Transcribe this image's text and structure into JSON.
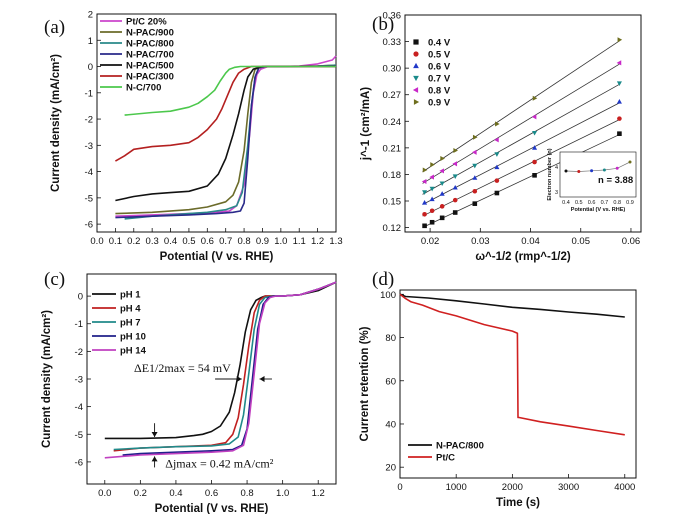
{
  "chart_data": [
    {
      "panel": "(a)",
      "type": "line",
      "xlabel": "Potential (V vs. RHE)",
      "ylabel": "Current density (mA/cm²)",
      "xlim": [
        0.0,
        1.3
      ],
      "ylim": [
        -6.3,
        2.0
      ],
      "xticks": [
        "0.0",
        "0.1",
        "0.2",
        "0.3",
        "0.4",
        "0.5",
        "0.6",
        "0.7",
        "0.8",
        "0.9",
        "1.0",
        "1.1",
        "1.2",
        "1.3"
      ],
      "yticks": [
        "2",
        "1",
        "0",
        "-1",
        "-2",
        "-3",
        "-4",
        "-5",
        "-6"
      ],
      "legend_position": "top-left",
      "series": [
        {
          "name": "Pt/C 20%",
          "color": "#cc44cc",
          "x": [
            0.1,
            0.3,
            0.5,
            0.65,
            0.72,
            0.76,
            0.8,
            0.83,
            0.85,
            0.87,
            0.89,
            0.93,
            1.0,
            1.1,
            1.2,
            1.28,
            1.3
          ],
          "y": [
            -5.7,
            -5.65,
            -5.6,
            -5.55,
            -5.5,
            -5.3,
            -4.5,
            -2.6,
            -1.0,
            -0.3,
            -0.1,
            0.0,
            0.0,
            0.02,
            0.1,
            0.25,
            0.4
          ]
        },
        {
          "name": "N-PAC/900",
          "color": "#6b6b2a",
          "x": [
            0.1,
            0.3,
            0.5,
            0.6,
            0.7,
            0.74,
            0.77,
            0.8,
            0.82,
            0.84,
            0.86,
            0.9,
            1.0,
            1.2,
            1.3
          ],
          "y": [
            -5.6,
            -5.55,
            -5.45,
            -5.35,
            -5.15,
            -4.9,
            -4.4,
            -3.2,
            -1.8,
            -0.6,
            -0.1,
            0.0,
            0.0,
            0.02,
            0.05
          ]
        },
        {
          "name": "N-PAC/800",
          "color": "#2a8a8a",
          "x": [
            0.15,
            0.3,
            0.5,
            0.6,
            0.7,
            0.76,
            0.79,
            0.82,
            0.84,
            0.86,
            0.88,
            0.92,
            1.0,
            1.2,
            1.3
          ],
          "y": [
            -5.8,
            -5.7,
            -5.6,
            -5.55,
            -5.45,
            -5.3,
            -4.8,
            -3.0,
            -1.5,
            -0.4,
            -0.05,
            0.0,
            0.0,
            0.02,
            0.05
          ]
        },
        {
          "name": "N-PAC/700",
          "color": "#2a2a8a",
          "x": [
            0.1,
            0.3,
            0.5,
            0.65,
            0.74,
            0.78,
            0.8,
            0.82,
            0.84,
            0.86,
            0.88,
            0.92,
            1.0,
            1.3
          ],
          "y": [
            -5.75,
            -5.7,
            -5.65,
            -5.6,
            -5.55,
            -5.5,
            -5.2,
            -3.5,
            -1.5,
            -0.4,
            -0.05,
            0.0,
            0.0,
            0.02
          ]
        },
        {
          "name": "N-PAC/500",
          "color": "#111111",
          "x": [
            0.1,
            0.2,
            0.3,
            0.4,
            0.5,
            0.6,
            0.66,
            0.7,
            0.74,
            0.77,
            0.8,
            0.82,
            0.85,
            0.9,
            1.0,
            1.3
          ],
          "y": [
            -5.1,
            -4.95,
            -4.85,
            -4.8,
            -4.75,
            -4.55,
            -4.1,
            -3.5,
            -2.6,
            -1.8,
            -0.9,
            -0.4,
            -0.1,
            0.0,
            0.0,
            0.0
          ]
        },
        {
          "name": "N-PAC/300",
          "color": "#b42020",
          "x": [
            0.1,
            0.15,
            0.2,
            0.3,
            0.4,
            0.5,
            0.55,
            0.6,
            0.65,
            0.68,
            0.71,
            0.74,
            0.77,
            0.8,
            0.84,
            0.9,
            1.0,
            1.3
          ],
          "y": [
            -3.6,
            -3.4,
            -3.15,
            -3.05,
            -3.0,
            -2.9,
            -2.7,
            -2.4,
            -2.0,
            -1.6,
            -1.1,
            -0.6,
            -0.25,
            -0.1,
            0.0,
            0.0,
            0.0,
            0.0
          ]
        },
        {
          "name": "N-C/700",
          "color": "#4cc84c",
          "x": [
            0.15,
            0.3,
            0.4,
            0.5,
            0.55,
            0.6,
            0.64,
            0.67,
            0.7,
            0.72,
            0.75,
            0.78,
            0.82,
            0.9,
            1.0,
            1.3
          ],
          "y": [
            -1.85,
            -1.75,
            -1.7,
            -1.55,
            -1.4,
            -1.15,
            -0.9,
            -0.55,
            -0.25,
            -0.1,
            -0.03,
            0.0,
            0.0,
            0.0,
            0.0,
            0.0
          ]
        }
      ]
    },
    {
      "panel": "(b)",
      "type": "scatter",
      "xlabel": "ω^-1/2 (rmp^-1/2)",
      "ylabel": "j^-1 (cm²/mA)",
      "xlim": [
        0.015,
        0.062
      ],
      "ylim": [
        0.115,
        0.36
      ],
      "xticks": [
        "0.02",
        "0.03",
        "0.04",
        "0.05",
        "0.06"
      ],
      "yticks": [
        "0.36",
        "0.33",
        "0.30",
        "0.27",
        "0.24",
        "0.21",
        "0.18",
        "0.15",
        "0.12"
      ],
      "legend_position": "top-left",
      "x": [
        0.0189,
        0.0204,
        0.0224,
        0.025,
        0.0289,
        0.0333,
        0.0408,
        0.0577
      ],
      "series": [
        {
          "name": "0.4 V",
          "color": "#111111",
          "marker": "square",
          "values": [
            0.122,
            0.126,
            0.131,
            0.137,
            0.147,
            0.159,
            0.179,
            0.226
          ]
        },
        {
          "name": "0.5 V",
          "color": "#c82020",
          "marker": "circle",
          "values": [
            0.135,
            0.139,
            0.144,
            0.151,
            0.161,
            0.173,
            0.194,
            0.243
          ]
        },
        {
          "name": "0.6 V",
          "color": "#2038c8",
          "marker": "triangle-up",
          "values": [
            0.148,
            0.152,
            0.158,
            0.165,
            0.176,
            0.188,
            0.21,
            0.262
          ]
        },
        {
          "name": "0.7 V",
          "color": "#1a8a8a",
          "marker": "triangle-down",
          "values": [
            0.16,
            0.164,
            0.17,
            0.178,
            0.19,
            0.203,
            0.227,
            0.283
          ]
        },
        {
          "name": "0.8 V",
          "color": "#c828c8",
          "marker": "triangle-left",
          "values": [
            0.172,
            0.177,
            0.184,
            0.192,
            0.205,
            0.219,
            0.245,
            0.306
          ]
        },
        {
          "name": "0.9 V",
          "color": "#6e6e1e",
          "marker": "triangle-right",
          "values": [
            0.185,
            0.191,
            0.198,
            0.207,
            0.222,
            0.237,
            0.266,
            0.332
          ]
        }
      ],
      "inset": {
        "xlabel": "Potential (V vs. RHE)",
        "ylabel": "Electron number (n)",
        "xticks": [
          "0.4",
          "0.5",
          "0.6",
          "0.7",
          "0.8",
          "0.9"
        ],
        "yticks": [
          "4",
          "3"
        ],
        "x": [
          0.4,
          0.5,
          0.6,
          0.7,
          0.8,
          0.9
        ],
        "values": [
          3.84,
          3.82,
          3.85,
          3.88,
          3.95,
          4.2
        ],
        "colors": [
          "#111111",
          "#c82020",
          "#2038c8",
          "#1a8a8a",
          "#c828c8",
          "#6e6e1e"
        ]
      },
      "annotation": "n = 3.88"
    },
    {
      "panel": "(c)",
      "type": "line",
      "xlabel": "Potential (V vs. RHE)",
      "ylabel": "Current density (mA/cm²)",
      "xlim": [
        -0.1,
        1.3
      ],
      "ylim": [
        -6.8,
        0.8
      ],
      "xticks": [
        "0.0",
        "0.2",
        "0.4",
        "0.6",
        "0.8",
        "1.0",
        "1.2"
      ],
      "yticks": [
        "0",
        "-1",
        "-2",
        "-3",
        "-4",
        "-5",
        "-6"
      ],
      "legend_position": "top-left",
      "series": [
        {
          "name": "pH 1",
          "color": "#111111",
          "x": [
            0.0,
            0.2,
            0.4,
            0.5,
            0.55,
            0.6,
            0.65,
            0.7,
            0.73,
            0.76,
            0.79,
            0.82,
            0.85,
            0.88,
            0.9,
            0.95,
            1.0,
            1.1,
            1.2,
            1.25,
            1.3
          ],
          "y": [
            -5.15,
            -5.15,
            -5.12,
            -5.05,
            -5.0,
            -4.9,
            -4.7,
            -4.2,
            -3.5,
            -2.5,
            -1.3,
            -0.5,
            -0.15,
            -0.05,
            0.0,
            0.0,
            0.0,
            0.05,
            0.2,
            0.35,
            0.5
          ]
        },
        {
          "name": "pH 4",
          "color": "#c02020",
          "x": [
            0.05,
            0.2,
            0.4,
            0.6,
            0.68,
            0.72,
            0.75,
            0.78,
            0.81,
            0.84,
            0.87,
            0.9,
            0.95,
            1.0,
            1.1,
            1.2,
            1.3
          ],
          "y": [
            -5.6,
            -5.5,
            -5.45,
            -5.4,
            -5.3,
            -5.0,
            -4.4,
            -3.2,
            -1.8,
            -0.6,
            -0.15,
            0.0,
            0.0,
            0.0,
            0.05,
            0.25,
            0.5
          ]
        },
        {
          "name": "pH 7",
          "color": "#208a8a",
          "x": [
            0.05,
            0.2,
            0.4,
            0.6,
            0.7,
            0.75,
            0.78,
            0.81,
            0.84,
            0.87,
            0.9,
            0.95,
            1.0,
            1.1,
            1.2,
            1.3
          ],
          "y": [
            -5.55,
            -5.5,
            -5.45,
            -5.42,
            -5.35,
            -5.1,
            -4.3,
            -2.8,
            -1.2,
            -0.3,
            -0.05,
            0.0,
            0.0,
            0.05,
            0.25,
            0.5
          ]
        },
        {
          "name": "pH 10",
          "color": "#20208a",
          "x": [
            0.1,
            0.2,
            0.4,
            0.6,
            0.72,
            0.77,
            0.8,
            0.83,
            0.86,
            0.89,
            0.92,
            0.95,
            1.0,
            1.1,
            1.2,
            1.3
          ],
          "y": [
            -5.75,
            -5.7,
            -5.65,
            -5.6,
            -5.55,
            -5.4,
            -4.8,
            -3.0,
            -1.2,
            -0.3,
            -0.05,
            0.0,
            0.0,
            0.05,
            0.25,
            0.5
          ]
        },
        {
          "name": "pH 14",
          "color": "#c040c0",
          "x": [
            0.0,
            0.2,
            0.4,
            0.6,
            0.72,
            0.78,
            0.81,
            0.84,
            0.87,
            0.9,
            0.93,
            0.96,
            1.0,
            1.1,
            1.2,
            1.3
          ],
          "y": [
            -5.85,
            -5.75,
            -5.7,
            -5.65,
            -5.6,
            -5.4,
            -4.6,
            -2.8,
            -1.0,
            -0.25,
            -0.05,
            0.0,
            0.0,
            0.05,
            0.25,
            0.5
          ]
        }
      ],
      "annotations": {
        "delta_e_label": "ΔE1/2max = 54 mV",
        "delta_j_label": "Δjmax = 0.42 mA/cm²"
      }
    },
    {
      "panel": "(d)",
      "type": "line",
      "xlabel": "Time (s)",
      "ylabel": "Current retention (%)",
      "xlim": [
        0,
        4200
      ],
      "ylim": [
        15,
        102
      ],
      "xticks": [
        "0",
        "1000",
        "2000",
        "3000",
        "4000"
      ],
      "yticks": [
        "100",
        "80",
        "60",
        "40",
        "20"
      ],
      "legend_position": "bottom-left",
      "series": [
        {
          "name": "N-PAC/800",
          "color": "#111111",
          "x": [
            0,
            100,
            500,
            1000,
            1500,
            2000,
            2500,
            3000,
            3500,
            4000
          ],
          "y": [
            100,
            99,
            98.3,
            97,
            95.5,
            94,
            93,
            91.8,
            90.8,
            89.5
          ]
        },
        {
          "name": "Pt/C",
          "color": "#d02020",
          "x": [
            0,
            100,
            200,
            400,
            700,
            1000,
            1500,
            2000,
            2090,
            2100,
            2120,
            2500,
            3000,
            3500,
            4000
          ],
          "y": [
            100,
            98,
            96.5,
            95,
            92,
            90,
            86,
            83,
            82,
            43,
            43,
            41,
            39,
            37,
            35
          ]
        }
      ]
    }
  ],
  "panel_labels": {
    "a": "(a)",
    "b": "(b)",
    "c": "(c)",
    "d": "(d)"
  }
}
